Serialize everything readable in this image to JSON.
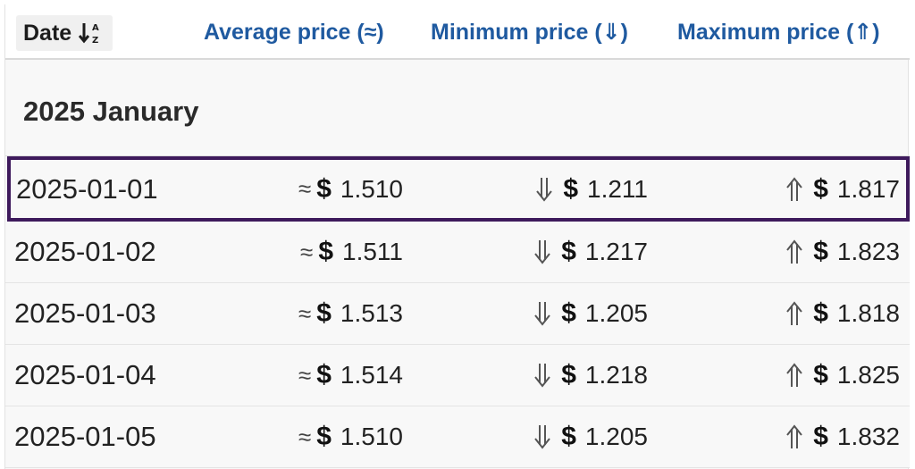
{
  "header": {
    "date_label": "Date",
    "date_sort_icon": "sort-ascending-az-icon",
    "average_label": "Average price (≈)",
    "minimum_label": "Minimum price (⇓)",
    "maximum_label": "Maximum price (⇑)"
  },
  "group": {
    "label": "2025 January"
  },
  "symbols": {
    "approx": "≈",
    "currency": "$"
  },
  "colors": {
    "header_link": "#1f5aa0",
    "highlight_border": "#3e1a5c"
  },
  "rows": [
    {
      "date": "2025-01-01",
      "avg": "1.510",
      "min": "1.211",
      "max": "1.817",
      "highlighted": true
    },
    {
      "date": "2025-01-02",
      "avg": "1.511",
      "min": "1.217",
      "max": "1.823",
      "highlighted": false
    },
    {
      "date": "2025-01-03",
      "avg": "1.513",
      "min": "1.205",
      "max": "1.818",
      "highlighted": false
    },
    {
      "date": "2025-01-04",
      "avg": "1.514",
      "min": "1.218",
      "max": "1.825",
      "highlighted": false
    },
    {
      "date": "2025-01-05",
      "avg": "1.510",
      "min": "1.205",
      "max": "1.832",
      "highlighted": false
    }
  ]
}
